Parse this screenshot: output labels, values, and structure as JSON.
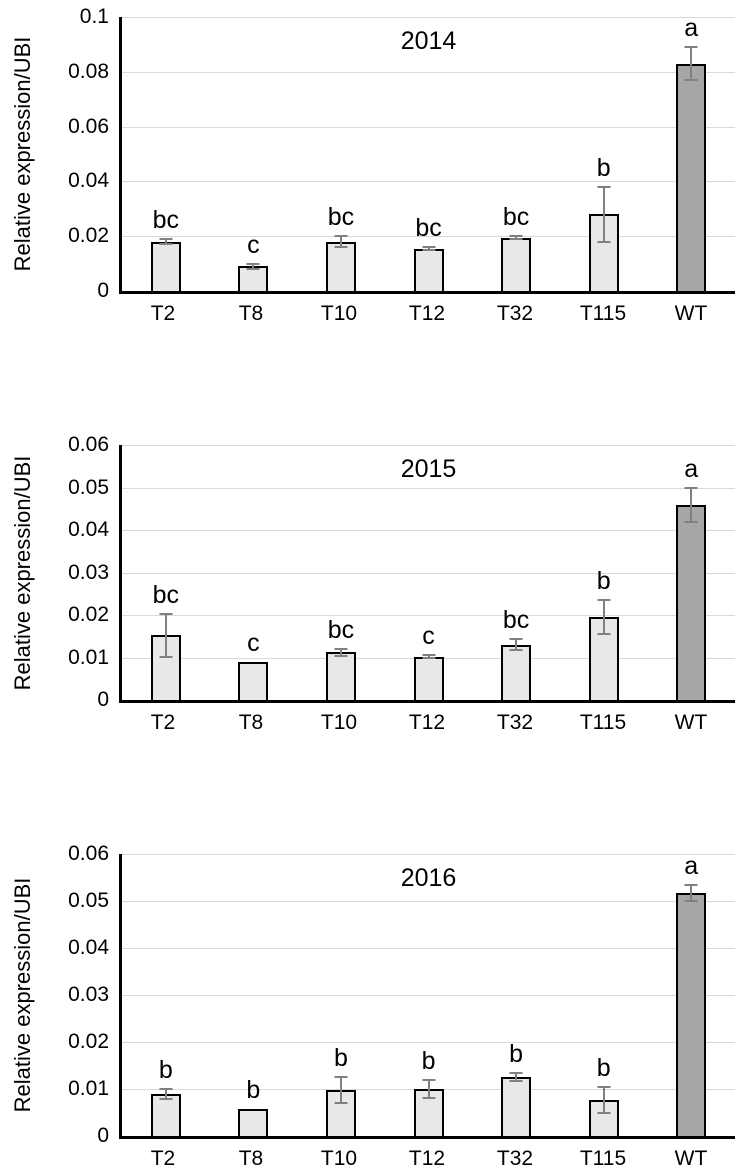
{
  "colors": {
    "bar_fill": "#e8e8e8",
    "wt_bar_fill": "#a6a6a6",
    "bar_border": "#000000",
    "error_bar": "#808080",
    "gridline": "#d9d9d9",
    "axis": "#000000",
    "text": "#000000"
  },
  "chart_data": [
    {
      "type": "bar",
      "title": "2014",
      "ylabel": "Relative expression/UBI",
      "xlabel": "",
      "categories": [
        "T2",
        "T8",
        "T10",
        "T12",
        "T32",
        "T115",
        "WT"
      ],
      "values": [
        0.018,
        0.009,
        0.018,
        0.0155,
        0.0195,
        0.028,
        0.083
      ],
      "errors": [
        0.001,
        0.0008,
        0.002,
        0.0005,
        0.0005,
        0.01,
        0.006
      ],
      "sig_letters": [
        "bc",
        "c",
        "bc",
        "bc",
        "bc",
        "b",
        "a"
      ],
      "ylim": [
        0,
        0.1
      ],
      "yticks": [
        "0",
        "0.02",
        "0.04",
        "0.06",
        "0.08",
        "0.1"
      ],
      "highlight_category": "WT",
      "grid": "horizontal",
      "legend": "none"
    },
    {
      "type": "bar",
      "title": "2015",
      "ylabel": "Relative expression/UBI",
      "xlabel": "",
      "categories": [
        "T2",
        "T8",
        "T10",
        "T12",
        "T32",
        "T115",
        "WT"
      ],
      "values": [
        0.0152,
        0.009,
        0.0112,
        0.0102,
        0.013,
        0.0195,
        0.046
      ],
      "errors": [
        0.005,
        0,
        0.0008,
        0.0004,
        0.0013,
        0.004,
        0.004
      ],
      "sig_letters": [
        "bc",
        "c",
        "bc",
        "c",
        "bc",
        "b",
        "a"
      ],
      "ylim": [
        0,
        0.06
      ],
      "yticks": [
        "0",
        "0.01",
        "0.02",
        "0.03",
        "0.04",
        "0.05",
        "0.06"
      ],
      "highlight_category": "WT",
      "grid": "horizontal",
      "legend": "none"
    },
    {
      "type": "bar",
      "title": "2016",
      "ylabel": "Relative expression/UBI",
      "xlabel": "",
      "categories": [
        "T2",
        "T8",
        "T10",
        "T12",
        "T32",
        "T115",
        "WT"
      ],
      "values": [
        0.0089,
        0.0057,
        0.0098,
        0.01,
        0.0126,
        0.0077,
        0.0517
      ],
      "errors": [
        0.0011,
        0,
        0.0027,
        0.002,
        0.0009,
        0.0027,
        0.0017
      ],
      "sig_letters": [
        "b",
        "b",
        "b",
        "b",
        "b",
        "b",
        "a"
      ],
      "ylim": [
        0,
        0.06
      ],
      "yticks": [
        "0",
        "0.01",
        "0.02",
        "0.03",
        "0.04",
        "0.05",
        "0.06"
      ],
      "highlight_category": "WT",
      "grid": "horizontal",
      "legend": "none"
    }
  ]
}
